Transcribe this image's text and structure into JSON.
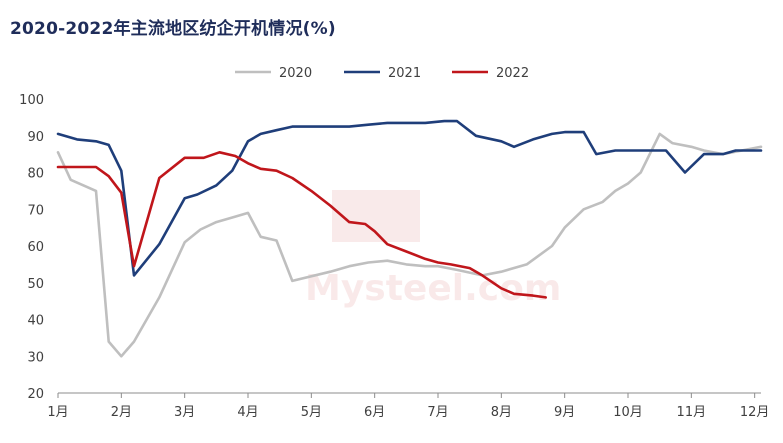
{
  "chart_data": {
    "type": "line",
    "title": "2020-2022年主流地区纺企开机情况(%)",
    "xlabel": "",
    "ylabel": "",
    "ylim": [
      20,
      100
    ],
    "yticks": [
      20,
      30,
      40,
      50,
      60,
      70,
      80,
      90,
      100
    ],
    "xlim": [
      0,
      11.1
    ],
    "month_ticks": [
      "1月",
      "2月",
      "3月",
      "4月",
      "5月",
      "6月",
      "7月",
      "8月",
      "9月",
      "10月",
      "11月",
      "12月"
    ],
    "grid": false,
    "legend_position": "top",
    "watermark": "我的钢铁 Mysteel.com",
    "series": [
      {
        "name": "2020",
        "color": "#bfbfbf",
        "x": [
          0,
          0.2,
          0.6,
          0.8,
          1.0,
          1.2,
          1.6,
          2.0,
          2.25,
          2.5,
          2.8,
          3.0,
          3.2,
          3.45,
          3.7,
          4.3,
          4.6,
          4.9,
          5.2,
          5.5,
          5.8,
          6.0,
          6.3,
          6.7,
          7.0,
          7.4,
          7.8,
          8.0,
          8.3,
          8.6,
          8.8,
          9.0,
          9.2,
          9.5,
          9.7,
          10.0,
          10.2,
          10.5,
          11.1
        ],
        "y": [
          85.5,
          78,
          75,
          34,
          30,
          34,
          46,
          61,
          64.5,
          66.5,
          68,
          69,
          62.5,
          61.5,
          50.5,
          53,
          54.5,
          55.5,
          56,
          55,
          54.5,
          54.5,
          53.5,
          52,
          53,
          55,
          60,
          65,
          70,
          72,
          75,
          77,
          80,
          90.5,
          88,
          87,
          86,
          85,
          87
        ]
      },
      {
        "name": "2021",
        "color": "#1f3e7a",
        "x": [
          0,
          0.3,
          0.6,
          0.8,
          1.0,
          1.2,
          1.6,
          2.0,
          2.2,
          2.5,
          2.75,
          3.0,
          3.2,
          3.45,
          3.7,
          4.0,
          4.3,
          4.6,
          4.9,
          5.2,
          5.5,
          5.8,
          6.1,
          6.3,
          6.6,
          7.0,
          7.2,
          7.5,
          7.8,
          8.0,
          8.3,
          8.5,
          8.8,
          9.0,
          9.3,
          9.6,
          9.9,
          10.2,
          10.5,
          10.7,
          11.1
        ],
        "y": [
          90.5,
          89,
          88.5,
          87.5,
          80.5,
          52,
          60.5,
          73,
          74,
          76.5,
          80.5,
          88.5,
          90.5,
          91.5,
          92.5,
          92.5,
          92.5,
          92.5,
          93,
          93.5,
          93.5,
          93.5,
          94,
          94,
          90,
          88.5,
          87,
          89,
          90.5,
          91,
          91,
          85,
          86,
          86,
          86,
          86,
          80,
          85,
          85,
          86,
          86
        ]
      },
      {
        "name": "2022",
        "color": "#c0161b",
        "x": [
          0,
          0.3,
          0.6,
          0.8,
          1.0,
          1.2,
          1.6,
          2.0,
          2.3,
          2.55,
          2.8,
          3.0,
          3.2,
          3.45,
          3.7,
          4.0,
          4.3,
          4.6,
          4.85,
          5.0,
          5.2,
          5.5,
          5.8,
          6.0,
          6.2,
          6.5,
          6.7,
          7.0,
          7.2,
          7.5,
          7.7
        ],
        "y": [
          81.5,
          81.5,
          81.5,
          79,
          74.5,
          54.5,
          78.5,
          84,
          84,
          85.5,
          84.5,
          82.5,
          81,
          80.5,
          78.5,
          75,
          71,
          66.5,
          66,
          64,
          60.5,
          58.5,
          56.5,
          55.5,
          55,
          54,
          52,
          48.5,
          47,
          46.5,
          46
        ]
      }
    ]
  }
}
